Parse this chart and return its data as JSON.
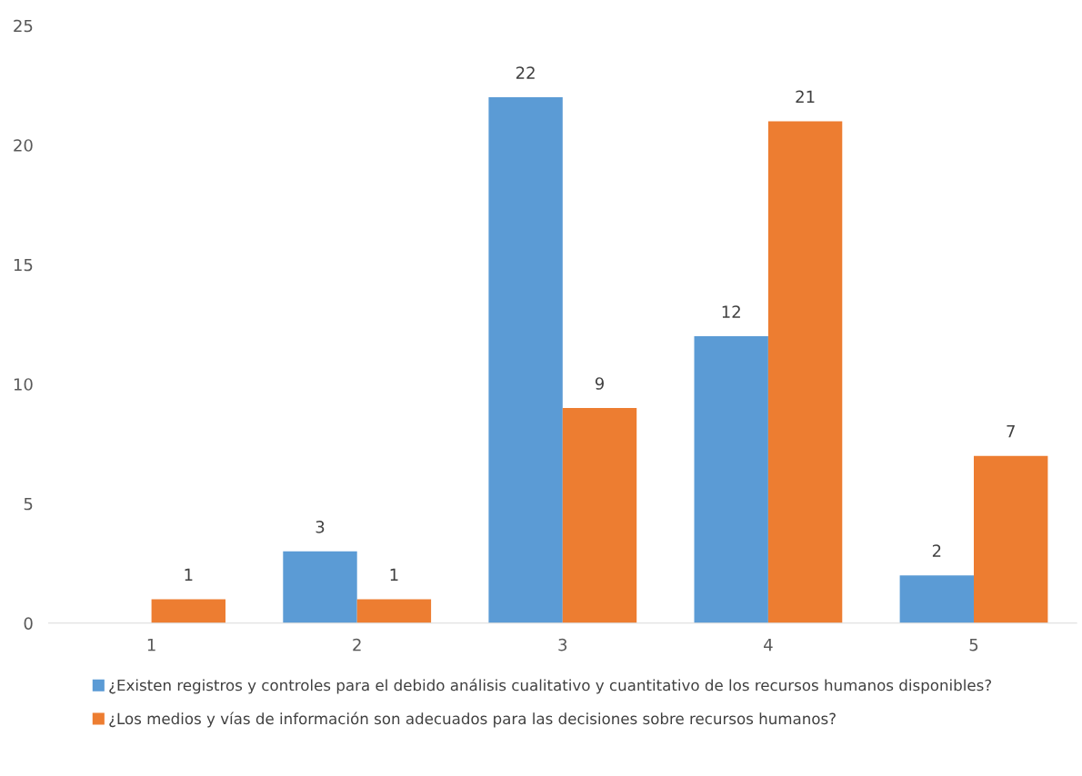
{
  "chart_data": {
    "type": "bar",
    "categories": [
      "1",
      "2",
      "3",
      "4",
      "5"
    ],
    "series": [
      {
        "name": "¿Existen registros y controles para el debido análisis cualitativo y cuantitativo de los recursos humanos disponibles?",
        "color": "#5b9bd5",
        "values": [
          null,
          3,
          22,
          12,
          2
        ]
      },
      {
        "name": "¿Los medios y vías de información son adecuados para las decisiones sobre recursos humanos?",
        "color": "#ed7d31",
        "values": [
          1,
          1,
          9,
          21,
          7
        ]
      }
    ],
    "ylim": [
      0,
      25
    ],
    "yticks": [
      0,
      5,
      10,
      15,
      20,
      25
    ],
    "data_labels": true,
    "grid": false,
    "legend": "bottom"
  }
}
